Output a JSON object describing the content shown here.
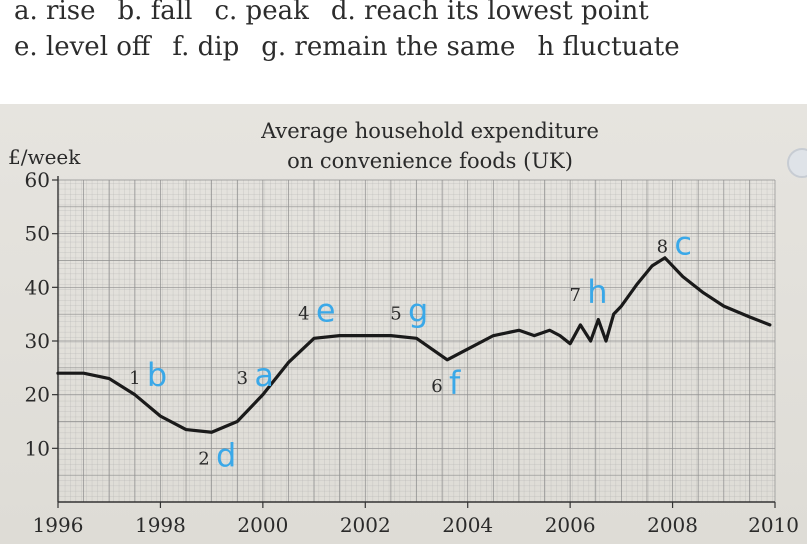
{
  "vocabulary": {
    "line1": [
      {
        "letter": "a.",
        "word": "rise"
      },
      {
        "letter": "b.",
        "word": "fall"
      },
      {
        "letter": "c.",
        "word": "peak"
      },
      {
        "letter": "d.",
        "word": "reach its lowest point"
      }
    ],
    "line2": [
      {
        "letter": "e.",
        "word": "level off"
      },
      {
        "letter": "f.",
        "word": "dip"
      },
      {
        "letter": "g.",
        "word": "remain the same"
      },
      {
        "letter": "h",
        "word": "fluctuate"
      }
    ]
  },
  "chart_data": {
    "type": "line",
    "title_line1": "Average household expenditure",
    "title_line2": "on convenience foods (UK)",
    "ylabel": "£/week",
    "xlabel": "",
    "xlim": [
      1996,
      2010
    ],
    "ylim": [
      0,
      60
    ],
    "x_ticks": [
      "1996",
      "1998",
      "2000",
      "2002",
      "2004",
      "2006",
      "2008",
      "2010"
    ],
    "y_ticks": [
      "10",
      "20",
      "30",
      "40",
      "50",
      "60"
    ],
    "grid": true,
    "series": [
      {
        "x": [
          1996,
          1996.5,
          1997,
          1997.5,
          1998,
          1998.5,
          1999,
          1999.5,
          2000,
          2000.5,
          2001,
          2001.5,
          2002,
          2002.5,
          2003,
          2003.3,
          2003.6,
          2004,
          2004.5,
          2005,
          2005.3,
          2005.6,
          2005.8,
          2006,
          2006.2,
          2006.4,
          2006.55,
          2006.7,
          2006.85,
          2007,
          2007.3,
          2007.6,
          2007.85,
          2008.2,
          2008.6,
          2009,
          2009.5,
          2009.9
        ],
        "y": [
          24,
          24,
          23,
          20,
          16,
          13.5,
          13,
          15,
          20,
          26,
          30.5,
          31,
          31,
          31,
          30.5,
          28.5,
          26.5,
          28.5,
          31,
          32,
          31,
          32,
          31,
          29.5,
          33,
          30,
          34,
          30,
          35,
          36.5,
          40.5,
          44,
          45.5,
          42,
          39,
          36.5,
          34.5,
          33
        ]
      }
    ],
    "annotations": [
      {
        "number": "1",
        "answer": "b",
        "x": 1997.5,
        "y": 22
      },
      {
        "number": "2",
        "answer": "d",
        "x": 1998.85,
        "y": 7
      },
      {
        "number": "3",
        "answer": "a",
        "x": 1999.6,
        "y": 22
      },
      {
        "number": "4",
        "answer": "e",
        "x": 2000.8,
        "y": 34
      },
      {
        "number": "5",
        "answer": "g",
        "x": 2002.6,
        "y": 34
      },
      {
        "number": "6",
        "answer": "f",
        "x": 2003.4,
        "y": 20.5
      },
      {
        "number": "7",
        "answer": "h",
        "x": 2006.1,
        "y": 37.5
      },
      {
        "number": "8",
        "answer": "c",
        "x": 2007.8,
        "y": 46.5
      }
    ],
    "colors": {
      "line": "#1a1a1a",
      "text": "#2a2a2a",
      "answer": "#3aa8e8",
      "grid": "#8e8e8e",
      "paper": "#e6e4df"
    }
  }
}
